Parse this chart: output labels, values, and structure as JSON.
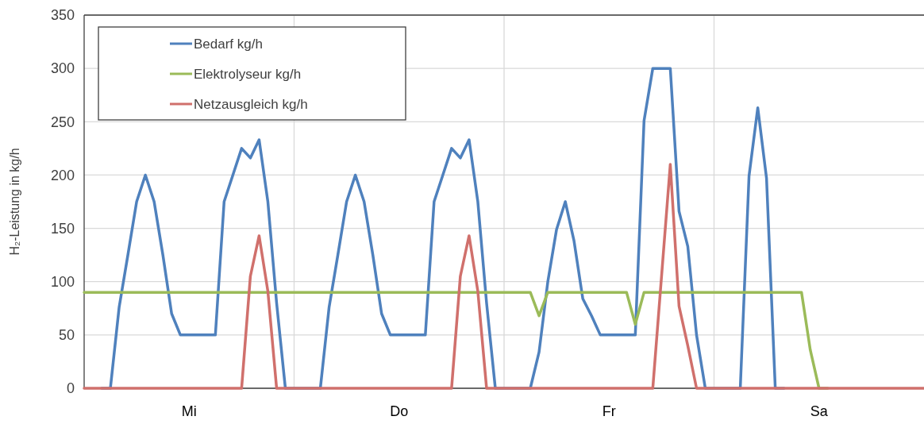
{
  "chart_data": {
    "type": "line",
    "ylabel": "H₂-Leistung in kg/h",
    "categories": [
      null,
      null,
      null,
      null,
      null,
      null,
      null,
      null,
      null,
      null,
      null,
      null,
      "Mi",
      null,
      null,
      null,
      null,
      null,
      null,
      null,
      null,
      null,
      null,
      null,
      null,
      null,
      null,
      null,
      null,
      null,
      null,
      null,
      null,
      null,
      null,
      null,
      "Do",
      null,
      null,
      null,
      null,
      null,
      null,
      null,
      null,
      null,
      null,
      null,
      null,
      null,
      null,
      null,
      null,
      null,
      null,
      null,
      null,
      null,
      null,
      null,
      "Fr",
      null,
      null,
      null,
      null,
      null,
      null,
      null,
      null,
      null,
      null,
      null,
      null,
      null,
      null,
      null,
      null,
      null,
      null,
      null,
      null,
      null,
      null,
      null,
      "Sa",
      null,
      null,
      null,
      null,
      null,
      null,
      null,
      null,
      null,
      null,
      null,
      null
    ],
    "series": [
      {
        "name": "Bedarf kg/h",
        "color": "#4f81bd",
        "values": [
          null,
          null,
          0,
          0,
          76,
          125,
          175,
          200,
          175,
          125,
          70,
          50,
          50,
          50,
          50,
          50,
          175,
          200,
          225,
          216,
          233,
          175,
          80,
          0,
          0,
          0,
          0,
          0,
          76,
          125,
          175,
          200,
          175,
          125,
          70,
          50,
          50,
          50,
          50,
          50,
          175,
          200,
          225,
          216,
          233,
          175,
          80,
          0,
          0,
          0,
          0,
          0,
          34,
          100,
          149,
          175,
          138,
          84,
          68,
          50,
          50,
          50,
          50,
          50,
          251,
          300,
          300,
          300,
          166,
          133,
          50,
          0,
          0,
          0,
          0,
          0,
          199,
          263,
          197,
          0,
          0,
          null,
          null,
          null,
          null,
          null,
          null,
          null,
          null,
          null,
          null,
          null,
          null,
          null,
          null,
          null,
          null
        ]
      },
      {
        "name": "Elektrolyseur kg/h",
        "color": "#9bbb59",
        "values": [
          90,
          90,
          90,
          90,
          90,
          90,
          90,
          90,
          90,
          90,
          90,
          90,
          90,
          90,
          90,
          90,
          90,
          90,
          90,
          90,
          90,
          90,
          90,
          90,
          90,
          90,
          90,
          90,
          90,
          90,
          90,
          90,
          90,
          90,
          90,
          90,
          90,
          90,
          90,
          90,
          90,
          90,
          90,
          90,
          90,
          90,
          90,
          90,
          90,
          90,
          90,
          90,
          68,
          90,
          90,
          90,
          90,
          90,
          90,
          90,
          90,
          90,
          90,
          60,
          90,
          90,
          90,
          90,
          90,
          90,
          90,
          90,
          90,
          90,
          90,
          90,
          90,
          90,
          90,
          90,
          90,
          90,
          90,
          36,
          0,
          0,
          null,
          null,
          null,
          null,
          null,
          null,
          null,
          null,
          null,
          null,
          null
        ]
      },
      {
        "name": "Netzausgleich kg/h",
        "color": "#d0706c",
        "values": [
          0,
          0,
          0,
          0,
          0,
          0,
          0,
          0,
          0,
          0,
          0,
          0,
          0,
          0,
          0,
          0,
          0,
          0,
          0,
          105,
          143,
          91,
          0,
          0,
          0,
          0,
          0,
          0,
          0,
          0,
          0,
          0,
          0,
          0,
          0,
          0,
          0,
          0,
          0,
          0,
          0,
          0,
          0,
          105,
          143,
          91,
          0,
          0,
          0,
          0,
          0,
          0,
          0,
          0,
          0,
          0,
          0,
          0,
          0,
          0,
          0,
          0,
          0,
          0,
          0,
          0,
          105,
          210,
          77,
          40,
          0,
          0,
          0,
          0,
          0,
          0,
          0,
          0,
          0,
          0,
          0,
          0,
          0,
          0,
          0,
          0,
          0,
          0,
          0,
          0,
          0,
          0,
          0,
          0,
          0,
          0,
          0
        ]
      }
    ],
    "ylim": [
      0,
      350
    ],
    "yticks": [
      0,
      50,
      100,
      150,
      200,
      250,
      300,
      350
    ],
    "grid": true,
    "legend": "top left",
    "marker": "none",
    "line_style": "solid"
  }
}
